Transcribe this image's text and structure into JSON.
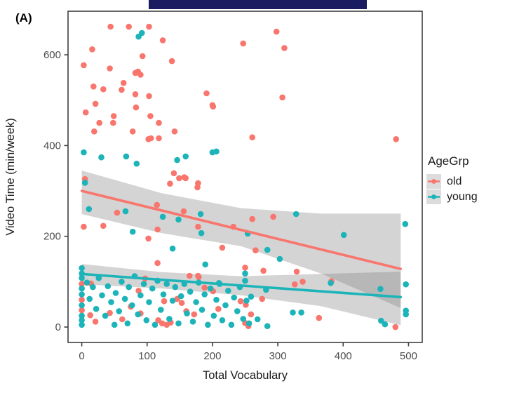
{
  "figure": {
    "panel_label": "(A)",
    "redaction_bar_color": "#1b1b62",
    "background": "#ffffff",
    "panel_border_color": "#404040"
  },
  "legend": {
    "title": "AgeGrp",
    "key_background": "#dcdcdc",
    "items": [
      {
        "label": "old",
        "color": "#F8766D"
      },
      {
        "label": "young",
        "color": "#1CB4B8"
      }
    ]
  },
  "chart_data": {
    "type": "scatter",
    "title": "",
    "xlabel": "Total Vocabulary",
    "ylabel": "Video Time (min/week)",
    "x_ticks": [
      0,
      100,
      200,
      300,
      400,
      500
    ],
    "y_ticks": [
      0,
      200,
      400,
      600
    ],
    "xlim": [
      -21,
      521
    ],
    "ylim": [
      -34,
      696
    ],
    "grid": "off",
    "legend_position": "right",
    "tick_label_color": "#4d4d4d",
    "axis_title_color": "#1a1a1a",
    "ribbon_color": "rgba(120,120,120,0.32)",
    "series": [
      {
        "name": "old",
        "color": "#F8766D",
        "regression_line": {
          "x": [
            0,
            488
          ],
          "y": [
            300,
            128
          ]
        },
        "ci_ribbon": {
          "x": [
            0,
            122,
            244,
            366,
            488
          ],
          "upper": [
            345,
            295,
            262,
            250,
            250
          ],
          "lower": [
            249,
            207,
            178,
            118,
            42
          ]
        },
        "points": [
          [
            44,
            662
          ],
          [
            72,
            662
          ],
          [
            103,
            662
          ],
          [
            124,
            632
          ],
          [
            247,
            625
          ],
          [
            298,
            651
          ],
          [
            16,
            612
          ],
          [
            93,
            597
          ],
          [
            310,
            615
          ],
          [
            3,
            577
          ],
          [
            43,
            570
          ],
          [
            86,
            563
          ],
          [
            90,
            556
          ],
          [
            138,
            586
          ],
          [
            82,
            560
          ],
          [
            18,
            530
          ],
          [
            33,
            524
          ],
          [
            64,
            538
          ],
          [
            61,
            523
          ],
          [
            82,
            513
          ],
          [
            103,
            509
          ],
          [
            191,
            515
          ],
          [
            307,
            506
          ],
          [
            201,
            486
          ],
          [
            83,
            484
          ],
          [
            6,
            473
          ],
          [
            21,
            492
          ],
          [
            49,
            465
          ],
          [
            105,
            465
          ],
          [
            200,
            489
          ],
          [
            19,
            431
          ],
          [
            27,
            450
          ],
          [
            48,
            450
          ],
          [
            78,
            431
          ],
          [
            106,
            416
          ],
          [
            118,
            450
          ],
          [
            142,
            431
          ],
          [
            102,
            414
          ],
          [
            118,
            416
          ],
          [
            261,
            418
          ],
          [
            481,
            414
          ],
          [
            5,
            326
          ],
          [
            141,
            339
          ],
          [
            149,
            328
          ],
          [
            159,
            328
          ],
          [
            177,
            308
          ],
          [
            157,
            330
          ],
          [
            135,
            316
          ],
          [
            178,
            317
          ],
          [
            115,
            269
          ],
          [
            54,
            252
          ],
          [
            156,
            255
          ],
          [
            3,
            221
          ],
          [
            33,
            223
          ],
          [
            116,
            215
          ],
          [
            178,
            221
          ],
          [
            232,
            221
          ],
          [
            261,
            238
          ],
          [
            293,
            243
          ],
          [
            102,
            195
          ],
          [
            215,
            175
          ],
          [
            266,
            169
          ],
          [
            250,
            131
          ],
          [
            116,
            141
          ],
          [
            179,
            110
          ],
          [
            278,
            124
          ],
          [
            329,
            122
          ],
          [
            338,
            100
          ],
          [
            326,
            94
          ],
          [
            382,
            101
          ],
          [
            14,
            96
          ],
          [
            87,
            80
          ],
          [
            97,
            107
          ],
          [
            165,
            113
          ],
          [
            178,
            113
          ],
          [
            188,
            87
          ],
          [
            201,
            79
          ],
          [
            62,
            17
          ],
          [
            43,
            31
          ],
          [
            13,
            26
          ],
          [
            21,
            12
          ],
          [
            126,
            57
          ],
          [
            117,
            15
          ],
          [
            123,
            8
          ],
          [
            146,
            62
          ],
          [
            153,
            53
          ],
          [
            209,
            40
          ],
          [
            251,
            49
          ],
          [
            243,
            57
          ],
          [
            276,
            62
          ],
          [
            259,
            28
          ],
          [
            250,
            9
          ],
          [
            255,
            2
          ],
          [
            363,
            20
          ],
          [
            480,
            0
          ],
          [
            0,
            37
          ],
          [
            0,
            60
          ],
          [
            0,
            95
          ],
          [
            130,
            5
          ],
          [
            136,
            10
          ],
          [
            160,
            35
          ],
          [
            75,
            45
          ],
          [
            90,
            30
          ],
          [
            172,
            28
          ]
        ]
      },
      {
        "name": "young",
        "color": "#1CB4B8",
        "regression_line": {
          "x": [
            0,
            488
          ],
          "y": [
            117,
            66
          ]
        },
        "ci_ribbon": {
          "x": [
            0,
            122,
            244,
            366,
            488
          ],
          "upper": [
            139,
            121,
            112,
            117,
            122
          ],
          "lower": [
            94,
            85,
            70,
            46,
            4
          ]
        },
        "points": [
          [
            87,
            640
          ],
          [
            92,
            648
          ],
          [
            3,
            385
          ],
          [
            30,
            374
          ],
          [
            68,
            376
          ],
          [
            84,
            360
          ],
          [
            146,
            368
          ],
          [
            200,
            385
          ],
          [
            206,
            387
          ],
          [
            159,
            376
          ],
          [
            11,
            260
          ],
          [
            67,
            255
          ],
          [
            124,
            243
          ],
          [
            78,
            210
          ],
          [
            148,
            237
          ],
          [
            182,
            249
          ],
          [
            183,
            207
          ],
          [
            139,
            173
          ],
          [
            189,
            138
          ],
          [
            254,
            206
          ],
          [
            284,
            170
          ],
          [
            303,
            150
          ],
          [
            250,
            118
          ],
          [
            328,
            249
          ],
          [
            401,
            203
          ],
          [
            495,
            227
          ],
          [
            5,
            318
          ],
          [
            250,
            102
          ],
          [
            282,
            82
          ],
          [
            259,
            67
          ],
          [
            457,
            84
          ],
          [
            496,
            94
          ],
          [
            381,
            97
          ],
          [
            210,
            97
          ],
          [
            323,
            32
          ],
          [
            336,
            32
          ],
          [
            269,
            17
          ],
          [
            284,
            2
          ],
          [
            458,
            14
          ],
          [
            464,
            6
          ],
          [
            496,
            36
          ],
          [
            496,
            28
          ],
          [
            0,
            5
          ],
          [
            0,
            15
          ],
          [
            0,
            25
          ],
          [
            0,
            48
          ],
          [
            0,
            72
          ],
          [
            0,
            85
          ],
          [
            0,
            108
          ],
          [
            0,
            118
          ],
          [
            0,
            130
          ],
          [
            8,
            98
          ],
          [
            12,
            62
          ],
          [
            17,
            88
          ],
          [
            22,
            40
          ],
          [
            26,
            108
          ],
          [
            31,
            70
          ],
          [
            36,
            25
          ],
          [
            40,
            90
          ],
          [
            45,
            55
          ],
          [
            50,
            5
          ],
          [
            52,
            75
          ],
          [
            57,
            35
          ],
          [
            61,
            100
          ],
          [
            66,
            62
          ],
          [
            70,
            8
          ],
          [
            72,
            88
          ],
          [
            77,
            48
          ],
          [
            81,
            112
          ],
          [
            86,
            28
          ],
          [
            90,
            70
          ],
          [
            95,
            95
          ],
          [
            99,
            15
          ],
          [
            103,
            55
          ],
          [
            108,
            85
          ],
          [
            112,
            5
          ],
          [
            116,
            102
          ],
          [
            121,
            38
          ],
          [
            125,
            72
          ],
          [
            130,
            95
          ],
          [
            134,
            18
          ],
          [
            139,
            58
          ],
          [
            143,
            88
          ],
          [
            148,
            8
          ],
          [
            152,
            68
          ],
          [
            157,
            95
          ],
          [
            161,
            30
          ],
          [
            166,
            78
          ],
          [
            170,
            12
          ],
          [
            175,
            55
          ],
          [
            179,
            98
          ],
          [
            184,
            38
          ],
          [
            188,
            72
          ],
          [
            193,
            5
          ],
          [
            197,
            85
          ],
          [
            202,
            25
          ],
          [
            206,
            60
          ],
          [
            211,
            95
          ],
          [
            215,
            15
          ],
          [
            220,
            48
          ],
          [
            224,
            80
          ],
          [
            229,
            5
          ],
          [
            233,
            65
          ],
          [
            238,
            35
          ],
          [
            242,
            88
          ],
          [
            247,
            18
          ],
          [
            252,
            58
          ],
          [
            256,
            8
          ]
        ]
      }
    ]
  }
}
